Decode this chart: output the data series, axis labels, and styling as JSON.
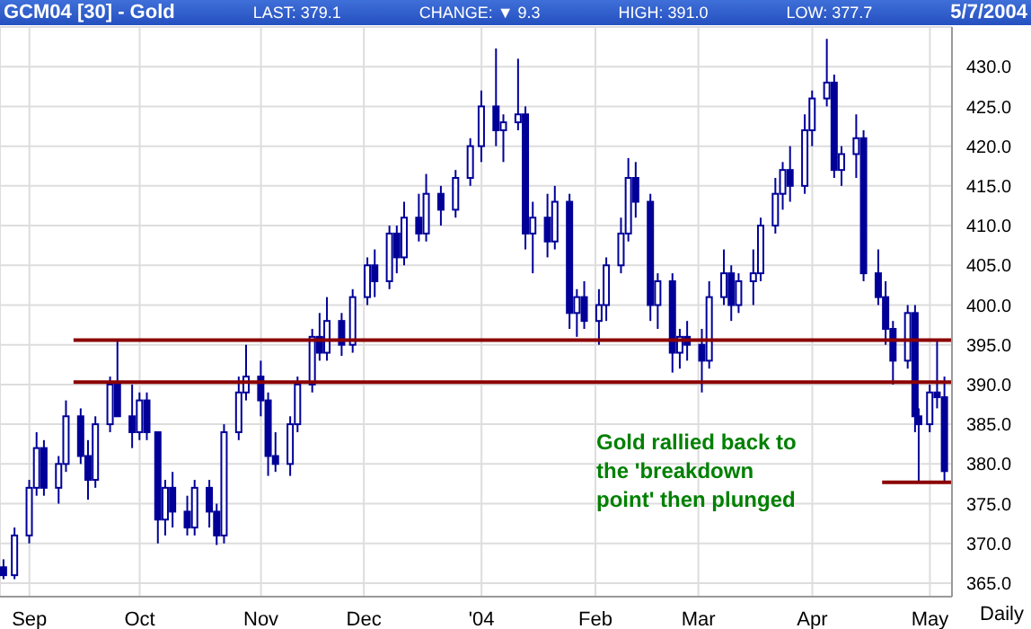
{
  "chart_data": {
    "type": "candlestick",
    "title": "GCM04 [30] - Gold",
    "xlabel": "Daily",
    "annotations": [
      "LAST: 379.1",
      "CHANGE: ▼ 9.3",
      "HIGH: 391.0",
      "LOW: 377.7",
      "5/7/2004",
      "Gold rallied back to the 'breakdown point' then plunged"
    ],
    "grid": true,
    "color": "#000099",
    "xlim": [
      "2003-08-24",
      "2004-05-09"
    ],
    "xticks": [
      {
        "value": "2003-09-01",
        "label": "Sep"
      },
      {
        "value": "2003-10-01",
        "label": "Oct"
      },
      {
        "value": "2003-11-03",
        "label": "Nov"
      },
      {
        "value": "2003-12-01",
        "label": "Dec"
      },
      {
        "value": "2004-01-02",
        "label": "'04"
      },
      {
        "value": "2004-02-02",
        "label": "Feb"
      },
      {
        "value": "2004-03-01",
        "label": "Mar"
      },
      {
        "value": "2004-04-01",
        "label": "Apr"
      },
      {
        "value": "2004-05-03",
        "label": "May"
      }
    ],
    "ylim": [
      363.3,
      435
    ],
    "yticks": [
      {
        "value": 365,
        "label": "365.0"
      },
      {
        "value": 370,
        "label": "370.0"
      },
      {
        "value": 375,
        "label": "375.0"
      },
      {
        "value": 380,
        "label": "380.0"
      },
      {
        "value": 385,
        "label": "385.0"
      },
      {
        "value": 390,
        "label": "390.0"
      },
      {
        "value": 395,
        "label": "395.0"
      },
      {
        "value": 400,
        "label": "400.0"
      },
      {
        "value": 405,
        "label": "405.0"
      },
      {
        "value": 410,
        "label": "410.0"
      },
      {
        "value": 415,
        "label": "415.0"
      },
      {
        "value": 420,
        "label": "420.0"
      },
      {
        "value": 425,
        "label": "425.0"
      },
      {
        "value": 430,
        "label": "430.0"
      }
    ],
    "x": [
      "2003-08-25",
      "2003-08-28",
      "2003-09-01",
      "2003-09-03",
      "2003-09-05",
      "2003-09-09",
      "2003-09-11",
      "2003-09-15",
      "2003-09-17",
      "2003-09-19",
      "2003-09-23",
      "2003-09-25",
      "2003-09-29",
      "2003-10-01",
      "2003-10-03",
      "2003-10-06",
      "2003-10-08",
      "2003-10-10",
      "2003-10-14",
      "2003-10-16",
      "2003-10-20",
      "2003-10-22",
      "2003-10-24",
      "2003-10-28",
      "2003-10-30",
      "2003-11-03",
      "2003-11-05",
      "2003-11-07",
      "2003-11-11",
      "2003-11-13",
      "2003-11-17",
      "2003-11-19",
      "2003-11-21",
      "2003-11-25",
      "2003-11-28",
      "2003-12-02",
      "2003-12-04",
      "2003-12-08",
      "2003-12-10",
      "2003-12-12",
      "2003-12-16",
      "2003-12-18",
      "2003-12-22",
      "2003-12-26",
      "2003-12-30",
      "2004-01-02",
      "2004-01-06",
      "2004-01-08",
      "2004-01-12",
      "2004-01-14",
      "2004-01-16",
      "2004-01-20",
      "2004-01-22",
      "2004-01-26",
      "2004-01-28",
      "2004-01-30",
      "2004-02-03",
      "2004-02-05",
      "2004-02-09",
      "2004-02-11",
      "2004-02-13",
      "2004-02-17",
      "2004-02-19",
      "2004-02-23",
      "2004-02-25",
      "2004-02-27",
      "2004-03-02",
      "2004-03-04",
      "2004-03-08",
      "2004-03-10",
      "2004-03-12",
      "2004-03-16",
      "2004-03-18",
      "2004-03-22",
      "2004-03-24",
      "2004-03-26",
      "2004-03-30",
      "2004-04-01",
      "2004-04-05",
      "2004-04-07",
      "2004-04-09",
      "2004-04-13",
      "2004-04-15",
      "2004-04-19",
      "2004-04-21",
      "2004-04-23",
      "2004-04-27",
      "2004-04-29",
      "2004-04-30",
      "2004-05-03",
      "2004-05-05",
      "2004-05-07"
    ],
    "ohlc": [
      [
        367,
        368,
        365.5,
        366
      ],
      [
        366,
        372,
        365.5,
        371
      ],
      [
        371,
        378,
        370,
        377
      ],
      [
        377,
        384,
        376,
        382
      ],
      [
        382,
        383,
        376,
        377
      ],
      [
        377,
        381,
        375,
        380
      ],
      [
        380,
        388,
        379,
        386
      ],
      [
        386,
        387,
        380,
        381
      ],
      [
        381,
        383,
        375.5,
        378
      ],
      [
        378,
        386,
        377,
        385
      ],
      [
        385,
        391,
        384,
        390
      ],
      [
        390,
        395.6,
        386,
        386
      ],
      [
        386,
        390,
        382,
        384
      ],
      [
        384,
        389,
        383,
        388
      ],
      [
        388,
        389,
        383,
        384
      ],
      [
        384,
        384,
        370,
        373
      ],
      [
        373,
        378,
        371,
        377
      ],
      [
        377,
        379,
        372,
        374
      ],
      [
        374,
        376,
        371,
        372
      ],
      [
        372,
        378,
        371,
        377
      ],
      [
        377,
        378,
        372,
        374
      ],
      [
        374,
        375,
        369.8,
        371
      ],
      [
        371,
        385,
        370,
        384
      ],
      [
        384,
        391,
        383,
        389
      ],
      [
        389,
        395,
        388,
        391
      ],
      [
        391,
        393,
        386,
        388
      ],
      [
        388,
        389,
        378.5,
        381
      ],
      [
        381,
        384,
        379,
        380
      ],
      [
        380,
        386,
        378.5,
        385
      ],
      [
        385,
        391,
        384,
        390
      ],
      [
        390,
        397,
        389,
        396
      ],
      [
        396,
        399,
        393,
        394
      ],
      [
        394,
        401,
        393,
        398
      ],
      [
        398,
        399,
        393.6,
        395
      ],
      [
        395,
        402,
        394,
        401
      ],
      [
        401,
        406,
        400,
        405
      ],
      [
        405,
        407,
        401,
        403
      ],
      [
        403,
        410,
        402,
        409
      ],
      [
        409,
        410,
        404,
        406
      ],
      [
        406,
        413,
        405,
        411
      ],
      [
        411,
        414,
        408,
        409
      ],
      [
        409,
        416.5,
        408,
        414
      ],
      [
        414,
        415,
        410,
        412
      ],
      [
        412,
        417,
        411,
        416
      ],
      [
        416,
        421,
        415,
        420
      ],
      [
        420,
        427,
        418,
        425
      ],
      [
        425,
        432.3,
        420,
        422
      ],
      [
        422,
        424,
        418,
        423
      ],
      [
        423,
        431,
        422,
        424
      ],
      [
        424,
        425,
        407,
        409
      ],
      [
        409,
        413,
        404,
        411
      ],
      [
        411,
        414,
        406,
        408
      ],
      [
        408,
        415,
        407,
        413
      ],
      [
        413,
        414,
        397,
        399
      ],
      [
        399,
        402,
        396,
        401
      ],
      [
        401,
        403,
        397,
        398
      ],
      [
        398,
        402,
        395,
        400
      ],
      [
        400,
        406,
        398,
        405
      ],
      [
        405,
        411,
        404,
        409
      ],
      [
        409,
        418.5,
        408,
        416
      ],
      [
        416,
        418,
        411,
        413
      ],
      [
        413,
        414,
        398,
        400
      ],
      [
        400,
        404,
        397,
        403
      ],
      [
        403,
        404,
        391.5,
        394
      ],
      [
        394,
        397,
        392,
        396
      ],
      [
        396,
        398,
        393,
        395
      ],
      [
        395,
        397,
        389,
        393
      ],
      [
        393,
        403,
        392,
        401
      ],
      [
        401,
        407,
        400,
        404
      ],
      [
        404,
        405,
        398,
        400
      ],
      [
        400,
        404,
        399,
        403
      ],
      [
        403,
        407,
        400,
        404
      ],
      [
        404,
        411,
        403,
        410
      ],
      [
        410,
        416,
        409,
        414
      ],
      [
        414,
        418,
        412,
        417
      ],
      [
        417,
        420,
        413,
        415
      ],
      [
        415,
        424,
        414,
        422
      ],
      [
        422,
        427,
        420,
        426
      ],
      [
        426,
        433.5,
        425,
        428
      ],
      [
        428,
        429,
        416,
        417
      ],
      [
        417,
        420,
        415,
        419
      ],
      [
        419,
        424,
        416,
        421
      ],
      [
        421,
        422,
        403,
        404
      ],
      [
        404,
        407,
        400,
        401
      ],
      [
        401,
        403,
        395,
        397
      ],
      [
        397,
        398,
        390,
        393
      ],
      [
        393,
        400,
        392,
        399
      ],
      [
        399,
        400,
        384,
        386
      ],
      [
        386,
        387,
        377.7,
        385
      ],
      [
        385,
        390,
        384,
        389
      ],
      [
        389,
        395.6,
        387,
        388.4
      ],
      [
        388.4,
        391.0,
        377.7,
        379.1
      ]
    ],
    "series": [
      {
        "type": "line",
        "x": [
          "2003-09-13",
          "2004-05-09"
        ],
        "values": [
          395.6,
          395.6
        ],
        "color": "#8b0000"
      },
      {
        "type": "line",
        "x": [
          "2003-09-13",
          "2004-05-09"
        ],
        "values": [
          390.3,
          390.3
        ],
        "color": "#8b0000"
      },
      {
        "type": "line",
        "x": [
          "2004-04-20",
          "2004-05-09"
        ],
        "values": [
          377.7,
          377.7
        ],
        "color": "#8b0000"
      }
    ]
  }
}
